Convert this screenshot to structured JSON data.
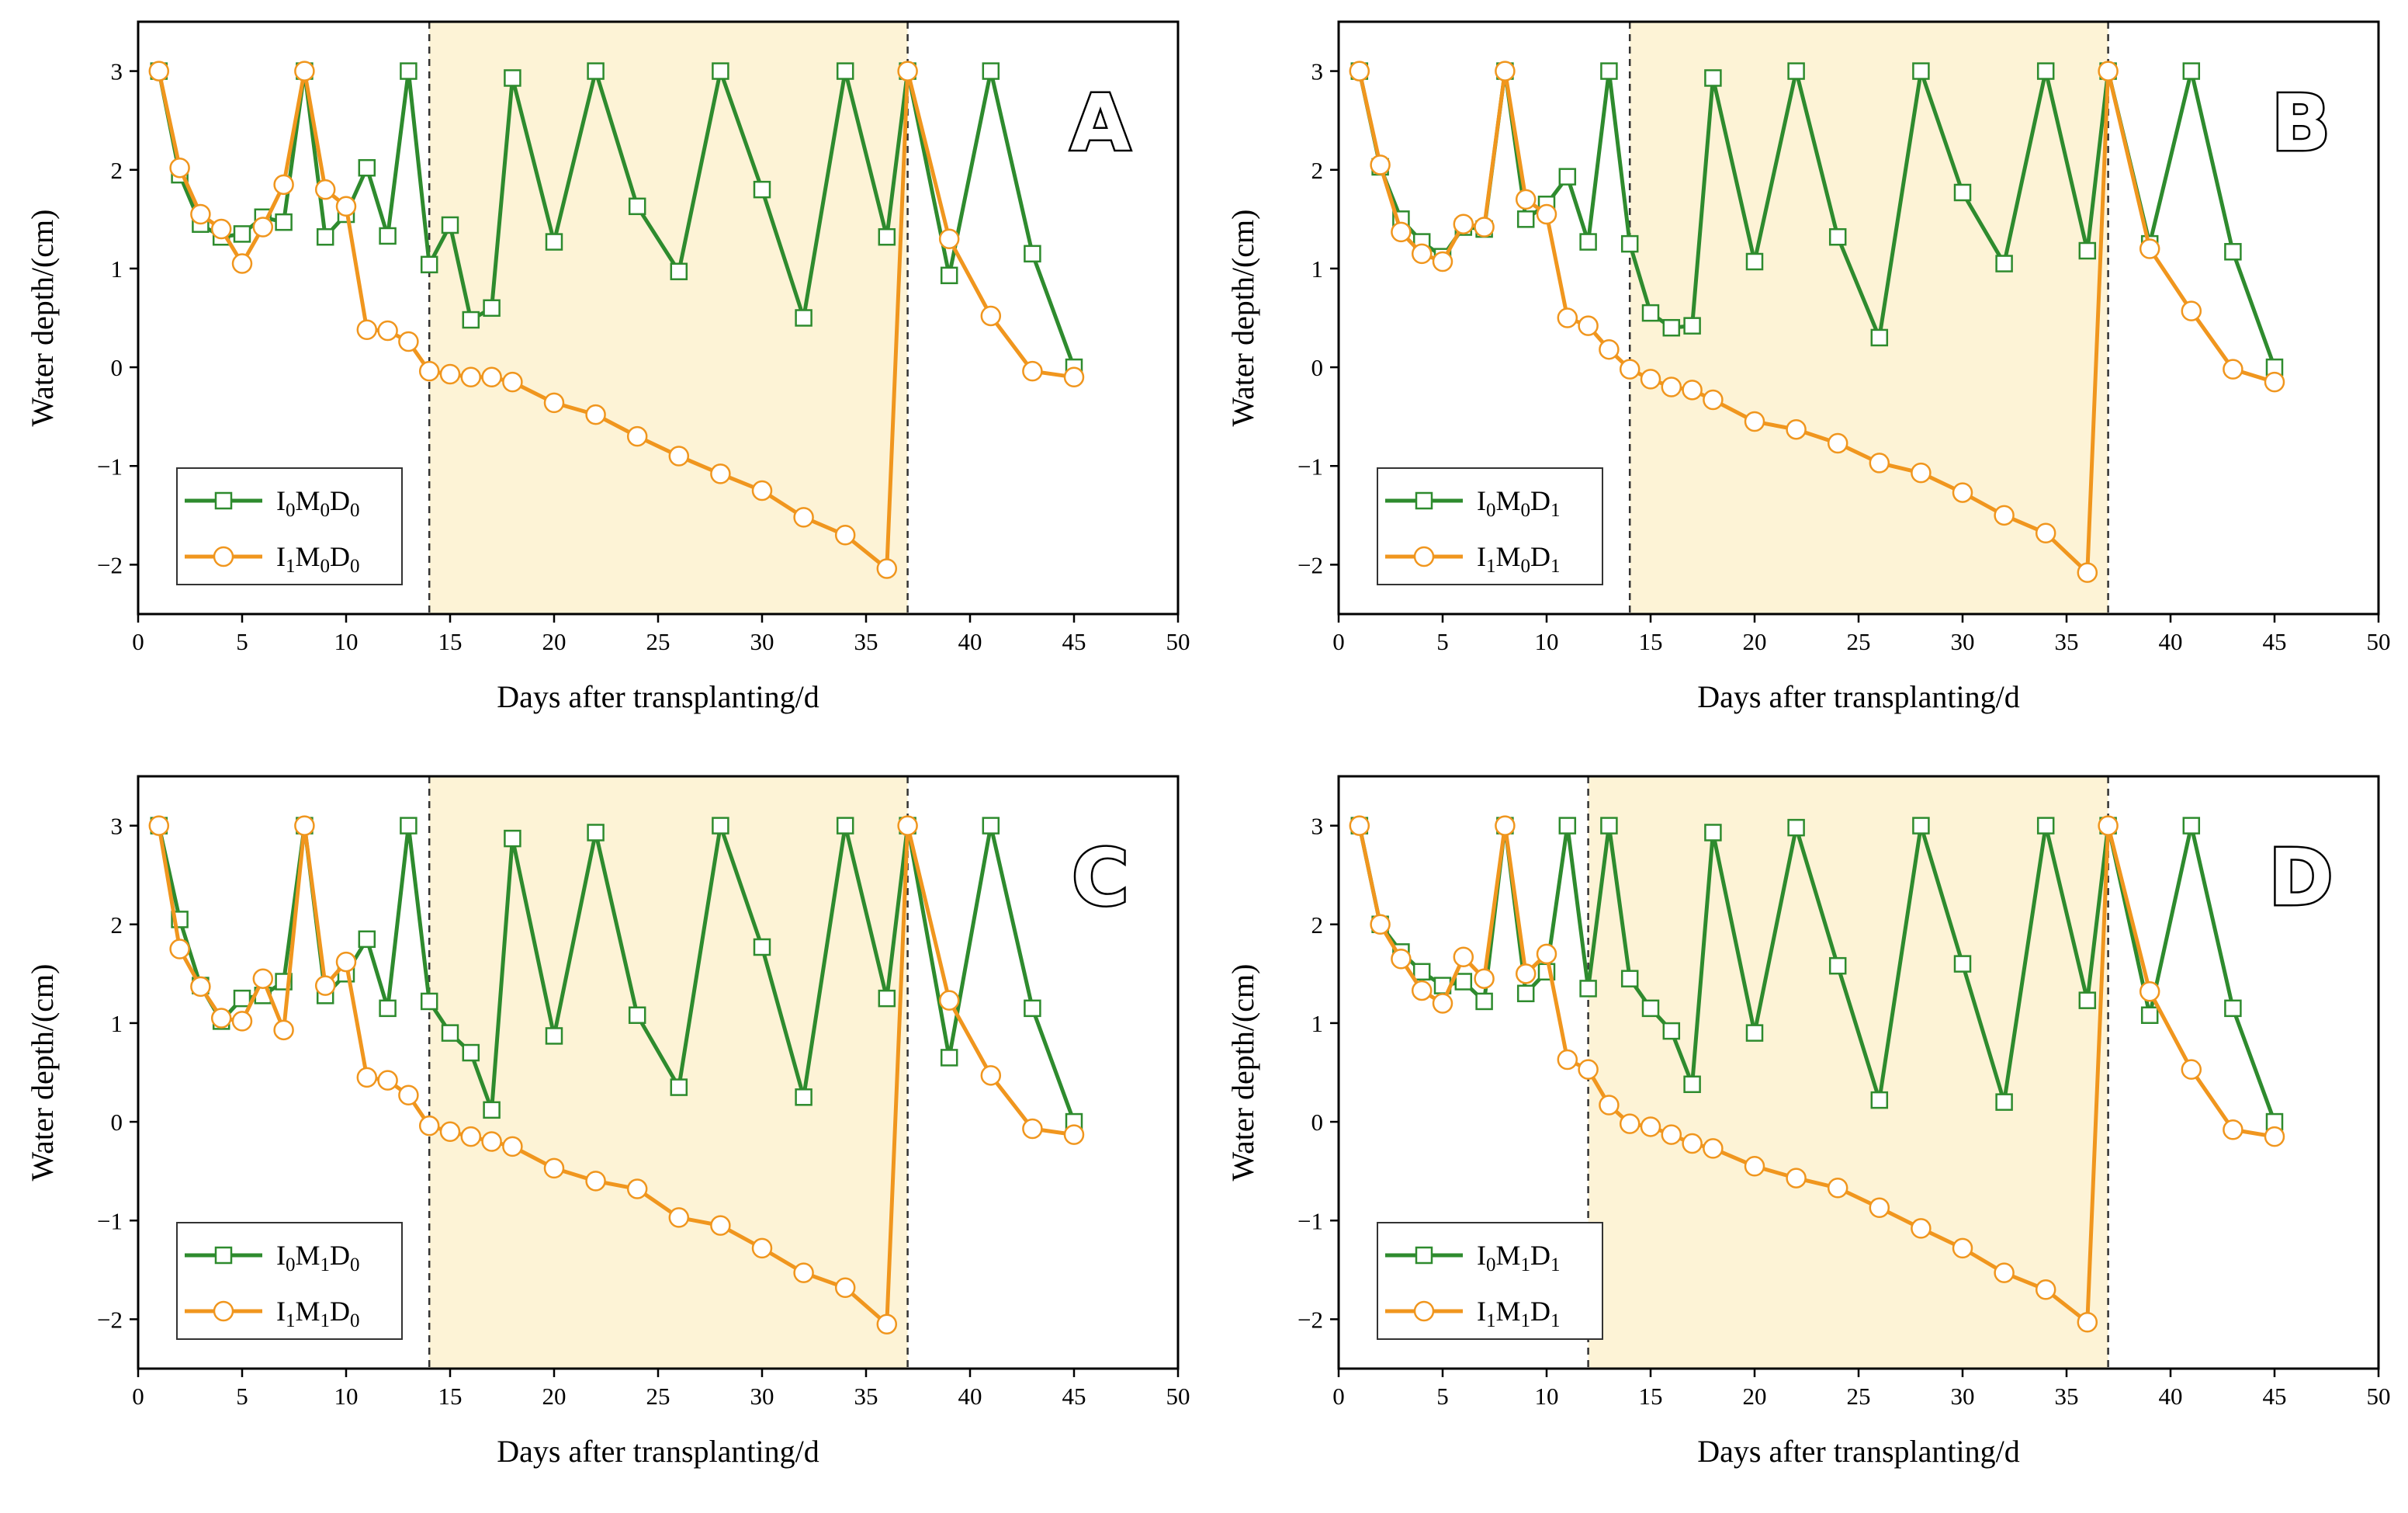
{
  "colors": {
    "I0": "#2e8b2e",
    "I1": "#f0961e",
    "shade": "#fdf3d6",
    "axis": "#000000"
  },
  "chart_data": [
    {
      "panel": "A",
      "type": "line",
      "xlabel": "Days after transplanting/d",
      "ylabel": "Water depth/(cm)",
      "xlim": [
        0,
        50
      ],
      "ylim": [
        -2.5,
        3.5
      ],
      "xticks": [
        "0",
        "5",
        "10",
        "15",
        "20",
        "25",
        "30",
        "35",
        "40",
        "45",
        "50"
      ],
      "yticks": [
        "−2",
        "−1",
        "0",
        "1",
        "2",
        "3"
      ],
      "shaded_range": [
        14,
        37
      ],
      "legend_position": "lower-left",
      "series": [
        {
          "name": "I0M0D0",
          "name_parts": [
            "I",
            "0",
            "M",
            "0",
            "D",
            "0"
          ],
          "marker": "square",
          "color_key": "I0",
          "x": [
            1,
            2,
            3,
            4,
            5,
            6,
            7,
            8,
            9,
            10,
            11,
            12,
            13,
            14,
            15,
            16,
            17,
            18,
            20,
            22,
            24,
            26,
            28,
            30,
            32,
            34,
            36,
            37,
            39,
            41,
            43,
            45
          ],
          "y": [
            3,
            1.95,
            1.45,
            1.32,
            1.35,
            1.52,
            1.47,
            3,
            1.32,
            1.55,
            2.02,
            1.33,
            3,
            1.04,
            1.44,
            0.48,
            0.6,
            2.93,
            1.27,
            3,
            1.63,
            0.97,
            3,
            1.8,
            0.5,
            3,
            1.32,
            3,
            0.93,
            3,
            1.15,
            0
          ]
        },
        {
          "name": "I1M0D0",
          "name_parts": [
            "I",
            "1",
            "M",
            "0",
            "D",
            "0"
          ],
          "marker": "circle",
          "color_key": "I1",
          "x": [
            1,
            2,
            3,
            4,
            5,
            6,
            7,
            8,
            9,
            10,
            11,
            12,
            13,
            14,
            15,
            16,
            17,
            18,
            20,
            22,
            24,
            26,
            28,
            30,
            32,
            34,
            36,
            37,
            39,
            41,
            43,
            45
          ],
          "y": [
            3,
            2.02,
            1.55,
            1.4,
            1.05,
            1.42,
            1.85,
            3,
            1.8,
            1.63,
            0.38,
            0.37,
            0.26,
            -0.04,
            -0.07,
            -0.1,
            -0.1,
            -0.15,
            -0.36,
            -0.48,
            -0.7,
            -0.9,
            -1.08,
            -1.25,
            -1.52,
            -1.7,
            -2.04,
            3,
            1.3,
            0.52,
            -0.04,
            -0.1
          ]
        }
      ]
    },
    {
      "panel": "B",
      "type": "line",
      "xlabel": "Days after transplanting/d",
      "ylabel": "Water depth/(cm)",
      "xlim": [
        0,
        50
      ],
      "ylim": [
        -2.5,
        3.5
      ],
      "xticks": [
        "0",
        "5",
        "10",
        "15",
        "20",
        "25",
        "30",
        "35",
        "40",
        "45",
        "50"
      ],
      "yticks": [
        "−2",
        "−1",
        "0",
        "1",
        "2",
        "3"
      ],
      "shaded_range": [
        14,
        37
      ],
      "legend_position": "lower-left",
      "series": [
        {
          "name": "I0M0D1",
          "name_parts": [
            "I",
            "0",
            "M",
            "0",
            "D",
            "1"
          ],
          "marker": "square",
          "color_key": "I0",
          "x": [
            1,
            2,
            3,
            4,
            5,
            6,
            7,
            8,
            9,
            10,
            11,
            12,
            13,
            14,
            15,
            16,
            17,
            18,
            20,
            22,
            24,
            26,
            28,
            30,
            32,
            34,
            36,
            37,
            39,
            41,
            43,
            45
          ],
          "y": [
            3,
            2.03,
            1.5,
            1.27,
            1.12,
            1.42,
            1.4,
            3,
            1.5,
            1.65,
            1.93,
            1.27,
            3,
            1.25,
            0.55,
            0.4,
            0.42,
            2.93,
            1.07,
            3,
            1.32,
            0.3,
            3,
            1.77,
            1.05,
            3,
            1.18,
            3,
            1.25,
            3,
            1.17,
            0
          ]
        },
        {
          "name": "I1M0D1",
          "name_parts": [
            "I",
            "1",
            "M",
            "0",
            "D",
            "1"
          ],
          "marker": "circle",
          "color_key": "I1",
          "x": [
            1,
            2,
            3,
            4,
            5,
            6,
            7,
            8,
            9,
            10,
            11,
            12,
            13,
            14,
            15,
            16,
            17,
            18,
            20,
            22,
            24,
            26,
            28,
            30,
            32,
            34,
            36,
            37,
            39,
            41,
            43,
            45
          ],
          "y": [
            3,
            2.05,
            1.37,
            1.15,
            1.07,
            1.45,
            1.42,
            3,
            1.7,
            1.55,
            0.5,
            0.42,
            0.18,
            -0.02,
            -0.12,
            -0.2,
            -0.23,
            -0.33,
            -0.55,
            -0.63,
            -0.77,
            -0.97,
            -1.07,
            -1.27,
            -1.5,
            -1.68,
            -2.08,
            3,
            1.2,
            0.57,
            -0.02,
            -0.15
          ]
        }
      ]
    },
    {
      "panel": "C",
      "type": "line",
      "xlabel": "Days after transplanting/d",
      "ylabel": "Water depth/(cm)",
      "xlim": [
        0,
        50
      ],
      "ylim": [
        -2.5,
        3.5
      ],
      "xticks": [
        "0",
        "5",
        "10",
        "15",
        "20",
        "25",
        "30",
        "35",
        "40",
        "45",
        "50"
      ],
      "yticks": [
        "−2",
        "−1",
        "0",
        "1",
        "2",
        "3"
      ],
      "shaded_range": [
        14,
        37
      ],
      "legend_position": "lower-left",
      "series": [
        {
          "name": "I0M1D0",
          "name_parts": [
            "I",
            "0",
            "M",
            "1",
            "D",
            "0"
          ],
          "marker": "square",
          "color_key": "I0",
          "x": [
            1,
            2,
            3,
            4,
            5,
            6,
            7,
            8,
            9,
            10,
            11,
            12,
            13,
            14,
            15,
            16,
            17,
            18,
            20,
            22,
            24,
            26,
            28,
            30,
            32,
            34,
            36,
            37,
            39,
            41,
            43,
            45
          ],
          "y": [
            3,
            2.05,
            1.38,
            1.02,
            1.25,
            1.28,
            1.42,
            3,
            1.28,
            1.5,
            1.85,
            1.15,
            3,
            1.22,
            0.9,
            0.7,
            0.12,
            2.87,
            0.87,
            2.93,
            1.08,
            0.35,
            3,
            1.77,
            0.25,
            3,
            1.25,
            3,
            0.65,
            3,
            1.15,
            0
          ]
        },
        {
          "name": "I1M1D0",
          "name_parts": [
            "I",
            "1",
            "M",
            "1",
            "D",
            "0"
          ],
          "marker": "circle",
          "color_key": "I1",
          "x": [
            1,
            2,
            3,
            4,
            5,
            6,
            7,
            8,
            9,
            10,
            11,
            12,
            13,
            14,
            15,
            16,
            17,
            18,
            20,
            22,
            24,
            26,
            28,
            30,
            32,
            34,
            36,
            37,
            39,
            41,
            43,
            45
          ],
          "y": [
            3,
            1.75,
            1.37,
            1.05,
            1.02,
            1.45,
            0.93,
            3,
            1.38,
            1.62,
            0.45,
            0.42,
            0.27,
            -0.04,
            -0.1,
            -0.15,
            -0.2,
            -0.25,
            -0.47,
            -0.6,
            -0.68,
            -0.97,
            -1.05,
            -1.28,
            -1.53,
            -1.68,
            -2.05,
            3,
            1.23,
            0.47,
            -0.07,
            -0.13
          ]
        }
      ]
    },
    {
      "panel": "D",
      "type": "line",
      "xlabel": "Days after transplanting/d",
      "ylabel": "Water depth/(cm)",
      "xlim": [
        0,
        50
      ],
      "ylim": [
        -2.5,
        3.5
      ],
      "xticks": [
        "0",
        "5",
        "10",
        "15",
        "20",
        "25",
        "30",
        "35",
        "40",
        "45",
        "50"
      ],
      "yticks": [
        "−2",
        "−1",
        "0",
        "1",
        "2",
        "3"
      ],
      "shaded_range": [
        12,
        37
      ],
      "legend_position": "lower-left",
      "series": [
        {
          "name": "I0M1D1",
          "name_parts": [
            "I",
            "0",
            "M",
            "1",
            "D",
            "1"
          ],
          "marker": "square",
          "color_key": "I0",
          "x": [
            1,
            2,
            3,
            4,
            5,
            6,
            7,
            8,
            9,
            10,
            11,
            12,
            13,
            14,
            15,
            16,
            17,
            18,
            20,
            22,
            24,
            26,
            28,
            30,
            32,
            34,
            36,
            37,
            39,
            41,
            43,
            45
          ],
          "y": [
            3,
            2,
            1.72,
            1.52,
            1.38,
            1.42,
            1.22,
            3,
            1.3,
            1.52,
            3,
            1.35,
            3,
            1.45,
            1.15,
            0.92,
            0.38,
            2.93,
            0.9,
            2.98,
            1.58,
            0.22,
            3,
            1.6,
            0.2,
            3,
            1.23,
            3,
            1.08,
            3,
            1.15,
            0
          ]
        },
        {
          "name": "I1M1D1",
          "name_parts": [
            "I",
            "1",
            "M",
            "1",
            "D",
            "1"
          ],
          "marker": "circle",
          "color_key": "I1",
          "x": [
            1,
            2,
            3,
            4,
            5,
            6,
            7,
            8,
            9,
            10,
            11,
            12,
            13,
            14,
            15,
            16,
            17,
            18,
            20,
            22,
            24,
            26,
            28,
            30,
            32,
            34,
            36,
            37,
            39,
            41,
            43,
            45
          ],
          "y": [
            3,
            2,
            1.65,
            1.33,
            1.2,
            1.67,
            1.45,
            3,
            1.5,
            1.7,
            0.63,
            0.53,
            0.17,
            -0.02,
            -0.05,
            -0.13,
            -0.22,
            -0.27,
            -0.45,
            -0.57,
            -0.67,
            -0.87,
            -1.08,
            -1.28,
            -1.53,
            -1.7,
            -2.03,
            3,
            1.32,
            0.53,
            -0.08,
            -0.15
          ]
        }
      ]
    }
  ]
}
